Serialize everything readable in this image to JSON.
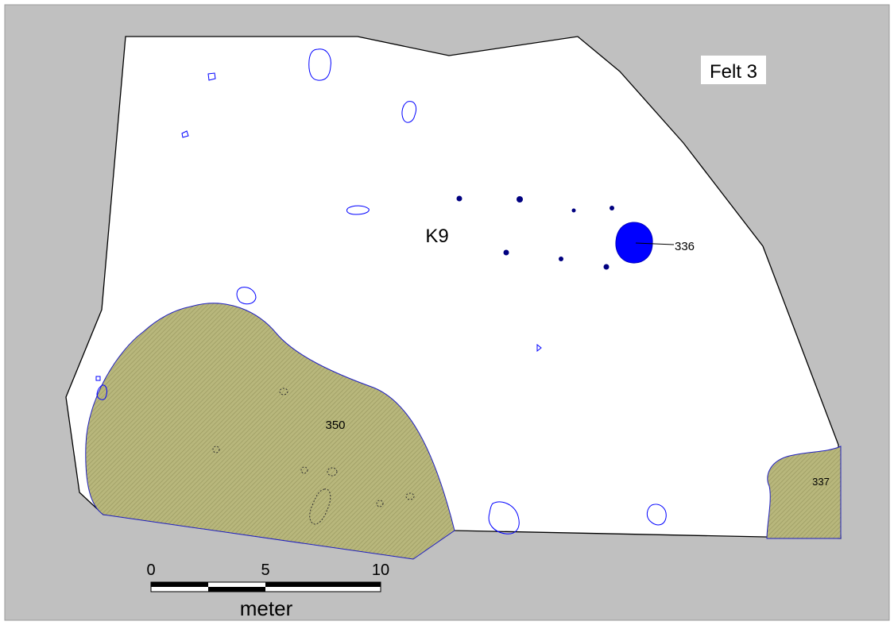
{
  "map": {
    "field_label": "Felt 3",
    "structure_label": "K9",
    "features": {
      "f336": "336",
      "f350": "350",
      "f337": "337"
    },
    "scale_bar": {
      "ticks": [
        "0",
        "5",
        "10"
      ],
      "unit": "meter"
    },
    "colors": {
      "background": "#c0c0c0",
      "excavation_area": "#ffffff",
      "outline": "#000000",
      "feature_outline": "#0000ff",
      "posthole_fill": "#000080",
      "pit_fill": "#0000ff",
      "layer_fill": "#b4b478"
    }
  }
}
